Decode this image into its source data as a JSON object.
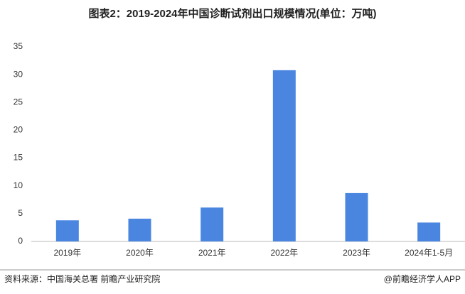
{
  "chart_data": {
    "type": "bar",
    "title": "图表2：2019-2024年中国诊断试剂出口规模情况(单位：万吨)",
    "categories": [
      "2019年",
      "2020年",
      "2021年",
      "2022年",
      "2023年",
      "2024年1-5月"
    ],
    "values": [
      3.8,
      4.1,
      6.1,
      30.8,
      8.7,
      3.4
    ],
    "color": "#4a86e0",
    "ylim": [
      0,
      35
    ],
    "yticks": [
      0,
      5,
      10,
      15,
      20,
      25,
      30,
      35
    ],
    "grid": false,
    "source": "资料来源：中国海关总署 前瞻产业研究院",
    "credit": "@前瞻经济学人APP"
  }
}
